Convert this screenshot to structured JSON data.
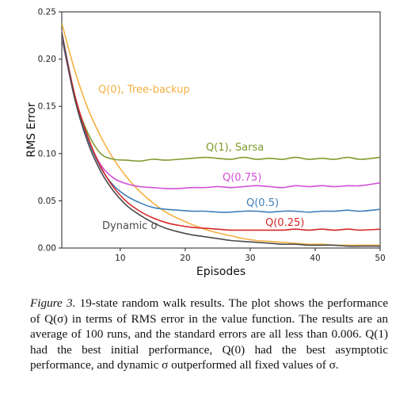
{
  "chart_data": {
    "type": "line",
    "title": "",
    "xlabel": "Episodes",
    "ylabel": "RMS Error",
    "xlim": [
      1,
      50
    ],
    "ylim": [
      0,
      0.25
    ],
    "xticks": [
      10,
      20,
      30,
      40,
      50
    ],
    "yticks": [
      0.0,
      0.05,
      0.1,
      0.15,
      0.2,
      0.25
    ],
    "ytick_labels": [
      "0.00",
      "0.05",
      "0.10",
      "0.15",
      "0.20",
      "0.25"
    ],
    "grid": false,
    "legend": "none (inline labels)",
    "series": [
      {
        "name": "Q(0), Tree-backup",
        "color": "#f5b041",
        "x": [
          1,
          3,
          5,
          7,
          9,
          11,
          13,
          15,
          17,
          19,
          21,
          23,
          25,
          27,
          29,
          31,
          33,
          35,
          37,
          39,
          41,
          43,
          45,
          47,
          50
        ],
        "y": [
          0.238,
          0.188,
          0.148,
          0.118,
          0.094,
          0.075,
          0.06,
          0.048,
          0.038,
          0.031,
          0.025,
          0.02,
          0.016,
          0.013,
          0.01,
          0.008,
          0.007,
          0.006,
          0.005,
          0.004,
          0.004,
          0.003,
          0.003,
          0.003,
          0.003
        ]
      },
      {
        "name": "Q(1), Sarsa",
        "color": "#7f9a2c",
        "x": [
          1,
          3,
          5,
          7,
          9,
          11,
          13,
          15,
          17,
          19,
          21,
          23,
          25,
          27,
          29,
          31,
          33,
          35,
          37,
          39,
          41,
          43,
          45,
          47,
          50
        ],
        "y": [
          0.222,
          0.16,
          0.122,
          0.1,
          0.094,
          0.093,
          0.092,
          0.094,
          0.093,
          0.094,
          0.095,
          0.096,
          0.095,
          0.094,
          0.096,
          0.094,
          0.095,
          0.094,
          0.096,
          0.094,
          0.095,
          0.094,
          0.096,
          0.094,
          0.096
        ]
      },
      {
        "name": "Q(0.75)",
        "color": "#d04ed6",
        "x": [
          1,
          3,
          5,
          7,
          9,
          11,
          13,
          15,
          17,
          19,
          21,
          23,
          25,
          27,
          29,
          31,
          33,
          35,
          37,
          39,
          41,
          43,
          45,
          47,
          50
        ],
        "y": [
          0.224,
          0.158,
          0.116,
          0.088,
          0.074,
          0.068,
          0.065,
          0.064,
          0.063,
          0.063,
          0.064,
          0.064,
          0.065,
          0.064,
          0.065,
          0.066,
          0.065,
          0.064,
          0.066,
          0.065,
          0.066,
          0.065,
          0.066,
          0.066,
          0.069
        ]
      },
      {
        "name": "Q(0.5)",
        "color": "#3d7fb8",
        "x": [
          1,
          3,
          5,
          7,
          9,
          11,
          13,
          15,
          17,
          19,
          21,
          23,
          25,
          27,
          29,
          31,
          33,
          35,
          37,
          39,
          41,
          43,
          45,
          47,
          50
        ],
        "y": [
          0.226,
          0.16,
          0.116,
          0.085,
          0.066,
          0.055,
          0.048,
          0.043,
          0.041,
          0.04,
          0.039,
          0.039,
          0.038,
          0.038,
          0.039,
          0.039,
          0.038,
          0.039,
          0.039,
          0.038,
          0.039,
          0.039,
          0.04,
          0.039,
          0.041
        ]
      },
      {
        "name": "Q(0.25)",
        "color": "#d62728",
        "x": [
          1,
          3,
          5,
          7,
          9,
          11,
          13,
          15,
          17,
          19,
          21,
          23,
          25,
          27,
          29,
          31,
          33,
          35,
          37,
          39,
          41,
          43,
          45,
          47,
          50
        ],
        "y": [
          0.228,
          0.162,
          0.118,
          0.086,
          0.064,
          0.049,
          0.039,
          0.032,
          0.027,
          0.024,
          0.022,
          0.021,
          0.02,
          0.019,
          0.019,
          0.019,
          0.019,
          0.019,
          0.02,
          0.019,
          0.02,
          0.019,
          0.02,
          0.019,
          0.02
        ]
      },
      {
        "name": "Dynamic σ",
        "color": "#4a4a4a",
        "x": [
          1,
          3,
          5,
          7,
          9,
          11,
          13,
          15,
          17,
          19,
          21,
          23,
          25,
          27,
          29,
          31,
          33,
          35,
          37,
          39,
          41,
          43,
          45,
          47,
          50
        ],
        "y": [
          0.228,
          0.158,
          0.112,
          0.081,
          0.06,
          0.045,
          0.035,
          0.027,
          0.021,
          0.017,
          0.014,
          0.012,
          0.01,
          0.008,
          0.007,
          0.006,
          0.005,
          0.004,
          0.004,
          0.003,
          0.003,
          0.003,
          0.002,
          0.002,
          0.002
        ]
      }
    ],
    "annotations": [
      {
        "text": "Q(0), Tree-backup",
        "series": "Q(0), Tree-backup"
      },
      {
        "text": "Q(1), Sarsa",
        "series": "Q(1), Sarsa"
      },
      {
        "text": "Q(0.75)",
        "series": "Q(0.75)"
      },
      {
        "text": "Q(0.5)",
        "series": "Q(0.5)"
      },
      {
        "text": "Q(0.25)",
        "series": "Q(0.25)"
      },
      {
        "text": "Dynamic σ",
        "series": "Dynamic σ"
      }
    ]
  },
  "caption": {
    "figure_label": "Figure 3.",
    "text": "19-state random walk results. The plot shows the performance of Q(σ) in terms of RMS error in the value function. The results are an average of 100 runs, and the standard errors are all less than 0.006. Q(1) had the best initial performance, Q(0) had the best asymptotic performance, and dynamic σ outperformed all fixed values of σ."
  }
}
